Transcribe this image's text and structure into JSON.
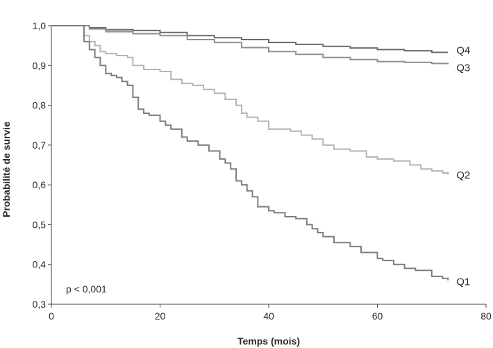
{
  "chart_data": {
    "type": "line",
    "step": true,
    "xlabel": "Temps (mois)",
    "ylabel": "Probabilité de survie",
    "xlim": [
      0,
      80
    ],
    "ylim": [
      0.3,
      1.0
    ],
    "xticks": [
      0,
      20,
      40,
      60,
      80
    ],
    "xtick_labels": [
      "0",
      "20",
      "40",
      "60",
      "80"
    ],
    "yticks": [
      0.3,
      0.4,
      0.5,
      0.6,
      0.7,
      0.8,
      0.9,
      1.0
    ],
    "ytick_labels": [
      "0,3",
      "0,4",
      "0,5",
      "0,6",
      "0,7",
      "0,8",
      "0,9",
      "1,0"
    ],
    "grid": false,
    "annotation": "p < 0,001",
    "series": [
      {
        "name": "Q4",
        "color": "#6a6a6a",
        "x": [
          0,
          5,
          7,
          10,
          15,
          20,
          25,
          30,
          35,
          40,
          45,
          50,
          55,
          60,
          65,
          70,
          73
        ],
        "y": [
          1.0,
          1.0,
          0.995,
          0.99,
          0.988,
          0.983,
          0.975,
          0.97,
          0.965,
          0.958,
          0.953,
          0.948,
          0.944,
          0.94,
          0.937,
          0.933,
          0.933
        ]
      },
      {
        "name": "Q3",
        "color": "#8e8e8e",
        "x": [
          0,
          5,
          7,
          10,
          15,
          20,
          25,
          30,
          35,
          40,
          45,
          50,
          55,
          60,
          65,
          70,
          73
        ],
        "y": [
          1.0,
          1.0,
          0.992,
          0.985,
          0.98,
          0.975,
          0.965,
          0.958,
          0.945,
          0.935,
          0.928,
          0.92,
          0.915,
          0.91,
          0.908,
          0.905,
          0.903
        ]
      },
      {
        "name": "Q2",
        "color": "#b4b4b4",
        "x": [
          0,
          5,
          6,
          7,
          8,
          9,
          10,
          12,
          14,
          15,
          17,
          20,
          22,
          24,
          26,
          28,
          30,
          32,
          34,
          35,
          36,
          38,
          40,
          44,
          46,
          48,
          50,
          52,
          55,
          58,
          60,
          63,
          66,
          68,
          70,
          72,
          73
        ],
        "y": [
          1.0,
          1.0,
          0.975,
          0.96,
          0.95,
          0.935,
          0.93,
          0.925,
          0.92,
          0.9,
          0.89,
          0.885,
          0.865,
          0.855,
          0.85,
          0.84,
          0.83,
          0.815,
          0.8,
          0.78,
          0.77,
          0.76,
          0.74,
          0.735,
          0.725,
          0.715,
          0.7,
          0.69,
          0.685,
          0.67,
          0.665,
          0.66,
          0.65,
          0.64,
          0.635,
          0.63,
          0.625
        ]
      },
      {
        "name": "Q1",
        "color": "#7d7d7d",
        "x": [
          0,
          5,
          6,
          7,
          8,
          9,
          10,
          11,
          12,
          13,
          14,
          15,
          16,
          17,
          18,
          20,
          21,
          22,
          24,
          25,
          27,
          29,
          31,
          32,
          33,
          34,
          35,
          36,
          37,
          38,
          40,
          41,
          43,
          45,
          47,
          48,
          49,
          50,
          52,
          55,
          57,
          60,
          61,
          63,
          65,
          67,
          70,
          72,
          73
        ],
        "y": [
          1.0,
          1.0,
          0.96,
          0.94,
          0.92,
          0.9,
          0.88,
          0.875,
          0.87,
          0.86,
          0.85,
          0.82,
          0.79,
          0.78,
          0.775,
          0.76,
          0.75,
          0.74,
          0.72,
          0.71,
          0.7,
          0.685,
          0.665,
          0.655,
          0.64,
          0.61,
          0.6,
          0.585,
          0.57,
          0.545,
          0.535,
          0.53,
          0.52,
          0.515,
          0.5,
          0.49,
          0.48,
          0.47,
          0.455,
          0.445,
          0.43,
          0.415,
          0.41,
          0.4,
          0.39,
          0.385,
          0.37,
          0.365,
          0.36
        ]
      }
    ]
  }
}
